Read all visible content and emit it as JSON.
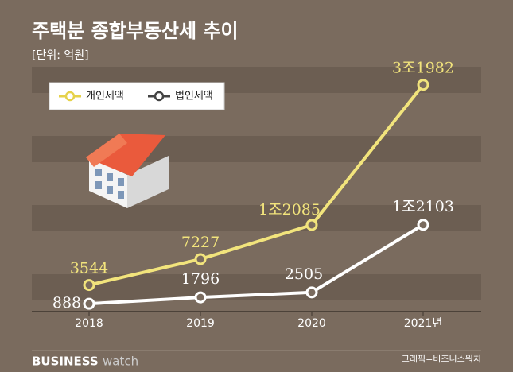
{
  "chart_data": {
    "type": "line",
    "title": "주택분 종합부동산세 추이",
    "subtitle": "[단위: 억원]",
    "categories": [
      "2018",
      "2019",
      "2020",
      "2021년"
    ],
    "series": [
      {
        "name": "개인세액",
        "color": "#f2e47c",
        "values": [
          3544,
          7227,
          12085,
          31982
        ],
        "value_labels": [
          "3544",
          "7227",
          "1조2085",
          "3조1982"
        ]
      },
      {
        "name": "법인세액",
        "color": "#ffffff",
        "values": [
          888,
          1796,
          2505,
          12103
        ],
        "value_labels": [
          "888",
          "1796",
          "2505",
          "1조2103"
        ]
      }
    ],
    "ylim": [
      0,
      35000
    ],
    "legend": "upper left",
    "brand": {
      "name": "BUSINESS",
      "suffix": "watch"
    },
    "credit": "그래픽=비즈니스워치"
  }
}
